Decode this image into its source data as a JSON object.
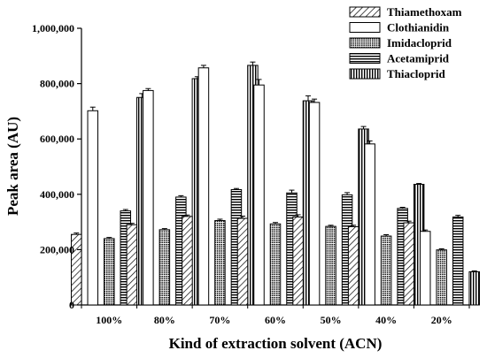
{
  "chart_data": {
    "type": "bar",
    "title": "",
    "xlabel": "Kind of extraction solvent (ACN)",
    "ylabel": "Peak area (AU)",
    "ylim": [
      0,
      1000000
    ],
    "yticks": [
      "0",
      "200,000",
      "400,000",
      "600,000",
      "800,000",
      "1,000,000"
    ],
    "ytick_values": [
      0,
      200000,
      400000,
      600000,
      800000,
      1000000
    ],
    "categories": [
      "100%",
      "80%",
      "70%",
      "60%",
      "50%",
      "40%",
      "20%"
    ],
    "legend_position": "top-right",
    "series": [
      {
        "name": "Thiamethoxam",
        "pattern": "diag",
        "values": [
          255000,
          290000,
          320000,
          313000,
          318000,
          283000,
          297000
        ],
        "errors": [
          5000,
          5000,
          5000,
          8000,
          8000,
          5000,
          6000
        ]
      },
      {
        "name": "Clothianidin",
        "pattern": "white",
        "values": [
          702000,
          775000,
          857000,
          795000,
          732000,
          582000,
          266000
        ],
        "errors": [
          13000,
          7000,
          9000,
          20000,
          12000,
          11000,
          5000
        ]
      },
      {
        "name": "Imidacloprid",
        "pattern": "dots",
        "values": [
          240000,
          272000,
          305000,
          293000,
          284000,
          249000,
          199000
        ],
        "errors": [
          4000,
          4000,
          5000,
          5000,
          4000,
          5000,
          4000
        ]
      },
      {
        "name": "Acetamiprid",
        "pattern": "hlines",
        "values": [
          340000,
          390000,
          417000,
          405000,
          398000,
          349000,
          318000
        ],
        "errors": [
          5000,
          5000,
          4000,
          10000,
          8000,
          4000,
          6000
        ]
      },
      {
        "name": "Thiacloprid",
        "pattern": "vlines",
        "values": [
          750000,
          818000,
          866000,
          738000,
          636000,
          436000,
          120000
        ],
        "errors": [
          14000,
          7000,
          12000,
          18000,
          9000,
          3000,
          3000
        ]
      }
    ]
  }
}
